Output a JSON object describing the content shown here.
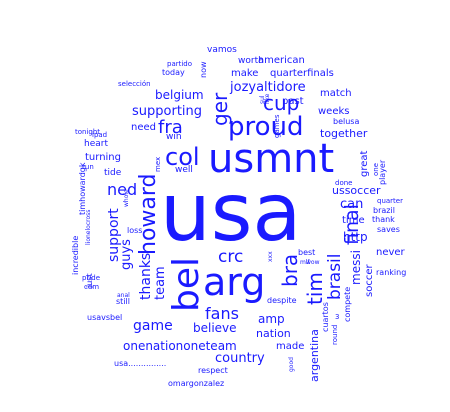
{
  "word_cloud": {
    "color": "#1a1aff",
    "words": [
      {
        "text": "usa",
        "weight": 1.0,
        "orientation": "horizontal"
      },
      {
        "text": "usmnt",
        "weight": 0.62,
        "orientation": "horizontal"
      },
      {
        "text": "arg",
        "weight": 0.55,
        "orientation": "horizontal"
      },
      {
        "text": "bel",
        "weight": 0.5,
        "orientation": "vertical"
      },
      {
        "text": "proud",
        "weight": 0.38,
        "orientation": "horizontal"
      },
      {
        "text": "col",
        "weight": 0.35,
        "orientation": "horizontal"
      },
      {
        "text": "howard",
        "weight": 0.34,
        "orientation": "vertical"
      },
      {
        "text": "ger",
        "weight": 0.3,
        "orientation": "vertical"
      },
      {
        "text": "bra",
        "weight": 0.3,
        "orientation": "vertical"
      },
      {
        "text": "tim",
        "weight": 0.28,
        "orientation": "vertical"
      },
      {
        "text": "final",
        "weight": 0.27,
        "orientation": "vertical"
      },
      {
        "text": "cup",
        "weight": 0.27,
        "orientation": "horizontal"
      },
      {
        "text": "fra",
        "weight": 0.25,
        "orientation": "horizontal"
      },
      {
        "text": "crc",
        "weight": 0.24,
        "orientation": "horizontal"
      },
      {
        "text": "brasil",
        "weight": 0.24,
        "orientation": "vertical"
      },
      {
        "text": "fans",
        "weight": 0.22,
        "orientation": "horizontal"
      },
      {
        "text": "ned",
        "weight": 0.22,
        "orientation": "horizontal"
      },
      {
        "text": "game",
        "weight": 0.2,
        "orientation": "horizontal"
      },
      {
        "text": "support",
        "weight": 0.2,
        "orientation": "vertical"
      },
      {
        "text": "thanks",
        "weight": 0.2,
        "orientation": "vertical"
      },
      {
        "text": "jozyaltidore",
        "weight": 0.19,
        "orientation": "horizontal"
      },
      {
        "text": "guys",
        "weight": 0.18,
        "orientation": "vertical"
      },
      {
        "text": "team",
        "weight": 0.18,
        "orientation": "vertical"
      },
      {
        "text": "country",
        "weight": 0.18,
        "orientation": "horizontal"
      },
      {
        "text": "supporting",
        "weight": 0.18,
        "orientation": "horizontal"
      },
      {
        "text": "can",
        "weight": 0.18,
        "orientation": "horizontal"
      },
      {
        "text": "belgium",
        "weight": 0.17,
        "orientation": "horizontal"
      },
      {
        "text": "http",
        "weight": 0.17,
        "orientation": "horizontal"
      },
      {
        "text": "believe",
        "weight": 0.17,
        "orientation": "horizontal"
      },
      {
        "text": "amp",
        "weight": 0.17,
        "orientation": "horizontal"
      },
      {
        "text": "onenationoneteam",
        "weight": 0.16,
        "orientation": "horizontal"
      },
      {
        "text": "messi",
        "weight": 0.16,
        "orientation": "vertical"
      },
      {
        "text": "argentina",
        "weight": 0.16,
        "orientation": "vertical"
      },
      {
        "text": "together",
        "weight": 0.15,
        "orientation": "horizontal"
      },
      {
        "text": "nation",
        "weight": 0.15,
        "orientation": "horizontal"
      },
      {
        "text": "ussoccer",
        "weight": 0.15,
        "orientation": "horizontal"
      },
      {
        "text": "time",
        "weight": 0.14,
        "orientation": "horizontal"
      },
      {
        "text": "made",
        "weight": 0.14,
        "orientation": "horizontal"
      },
      {
        "text": "never",
        "weight": 0.13,
        "orientation": "horizontal"
      },
      {
        "text": "need",
        "weight": 0.13,
        "orientation": "horizontal"
      },
      {
        "text": "make",
        "weight": 0.13,
        "orientation": "horizontal"
      },
      {
        "text": "match",
        "weight": 0.13,
        "orientation": "horizontal"
      },
      {
        "text": "great",
        "weight": 0.13,
        "orientation": "vertical"
      },
      {
        "text": "soccer",
        "weight": 0.13,
        "orientation": "vertical"
      },
      {
        "text": "past",
        "weight": 0.12,
        "orientation": "horizontal"
      },
      {
        "text": "weeks",
        "weight": 0.12,
        "orientation": "horizontal"
      },
      {
        "text": "quarterfinals",
        "weight": 0.12,
        "orientation": "horizontal"
      },
      {
        "text": "american",
        "weight": 0.12,
        "orientation": "horizontal"
      },
      {
        "text": "turning",
        "weight": 0.12,
        "orientation": "horizontal"
      },
      {
        "text": "vamos",
        "weight": 0.11,
        "orientation": "horizontal"
      },
      {
        "text": "worth",
        "weight": 0.11,
        "orientation": "horizontal"
      },
      {
        "text": "win",
        "weight": 0.11,
        "orientation": "horizontal"
      },
      {
        "text": "well",
        "weight": 0.11,
        "orientation": "horizontal"
      },
      {
        "text": "tide",
        "weight": 0.11,
        "orientation": "horizontal"
      },
      {
        "text": "heart",
        "weight": 0.11,
        "orientation": "horizontal"
      },
      {
        "text": "today",
        "weight": 0.1,
        "orientation": "horizontal"
      },
      {
        "text": "belusa",
        "weight": 0.1,
        "orientation": "horizontal"
      },
      {
        "text": "saves",
        "weight": 0.1,
        "orientation": "horizontal"
      },
      {
        "text": "thank",
        "weight": 0.1,
        "orientation": "horizontal"
      },
      {
        "text": "brazil",
        "weight": 0.1,
        "orientation": "horizontal"
      },
      {
        "text": "compete",
        "weight": 0.1,
        "orientation": "vertical"
      },
      {
        "text": "cuartos",
        "weight": 0.1,
        "orientation": "vertical"
      },
      {
        "text": "despite",
        "weight": 0.1,
        "orientation": "horizontal"
      },
      {
        "text": "best",
        "weight": 0.1,
        "orientation": "horizontal"
      },
      {
        "text": "ranking",
        "weight": 0.09,
        "orientation": "horizontal"
      },
      {
        "text": "still",
        "weight": 0.09,
        "orientation": "horizontal"
      },
      {
        "text": "loss",
        "weight": 0.09,
        "orientation": "horizontal"
      },
      {
        "text": "respect",
        "weight": 0.09,
        "orientation": "horizontal"
      },
      {
        "text": "omargonzalez",
        "weight": 0.09,
        "orientation": "horizontal"
      },
      {
        "text": "usa...............",
        "weight": 0.09,
        "orientation": "horizontal"
      },
      {
        "text": "usavsbel",
        "weight": 0.08,
        "orientation": "horizontal"
      },
      {
        "text": "run",
        "weight": 0.08,
        "orientation": "horizontal"
      },
      {
        "text": "tonight",
        "weight": 0.08,
        "orientation": "horizontal"
      },
      {
        "text": "pride",
        "weight": 0.08,
        "orientation": "horizontal"
      },
      {
        "text": "cdm",
        "weight": 0.08,
        "orientation": "horizontal"
      },
      {
        "text": "just",
        "weight": 0.08,
        "orientation": "vertical"
      },
      {
        "text": "incredible",
        "weight": 0.08,
        "orientation": "vertical"
      },
      {
        "text": "timhowardgk",
        "weight": 0.08,
        "orientation": "vertical"
      },
      {
        "text": "selección",
        "weight": 0.08,
        "orientation": "horizontal"
      },
      {
        "text": "partido",
        "weight": 0.08,
        "orientation": "horizontal"
      },
      {
        "text": "now",
        "weight": 0.08,
        "orientation": "vertical"
      },
      {
        "text": "player",
        "weight": 0.08,
        "orientation": "vertical"
      },
      {
        "text": "quarter",
        "weight": 0.08,
        "orientation": "horizontal"
      },
      {
        "text": "done",
        "weight": 0.07,
        "orientation": "horizontal"
      },
      {
        "text": "one",
        "weight": 0.07,
        "orientation": "vertical"
      },
      {
        "text": "round",
        "weight": 0.07,
        "orientation": "vertical"
      },
      {
        "text": "ipad",
        "weight": 0.07,
        "orientation": "horizontal"
      },
      {
        "text": "mex",
        "weight": 0.07,
        "orientation": "vertical"
      },
      {
        "text": "like",
        "weight": 0.07,
        "orientation": "vertical"
      },
      {
        "text": "sul",
        "weight": 0.07,
        "orientation": "vertical"
      },
      {
        "text": "games",
        "weight": 0.07,
        "orientation": "vertical"
      },
      {
        "text": "whole",
        "weight": 0.07,
        "orientation": "vertical"
      },
      {
        "text": "lionelocross",
        "weight": 0.07,
        "orientation": "vertical"
      },
      {
        "text": "anal",
        "weight": 0.06,
        "orientation": "horizontal"
      },
      {
        "text": "xxx",
        "weight": 0.06,
        "orientation": "vertical"
      },
      {
        "text": "mlf",
        "weight": 0.06,
        "orientation": "horizontal"
      },
      {
        "text": "wow",
        "weight": 0.06,
        "orientation": "horizontal"
      },
      {
        "text": "good",
        "weight": 0.06,
        "orientation": "vertical"
      },
      {
        "text": "3",
        "weight": 0.06,
        "orientation": "horizontal"
      }
    ]
  }
}
